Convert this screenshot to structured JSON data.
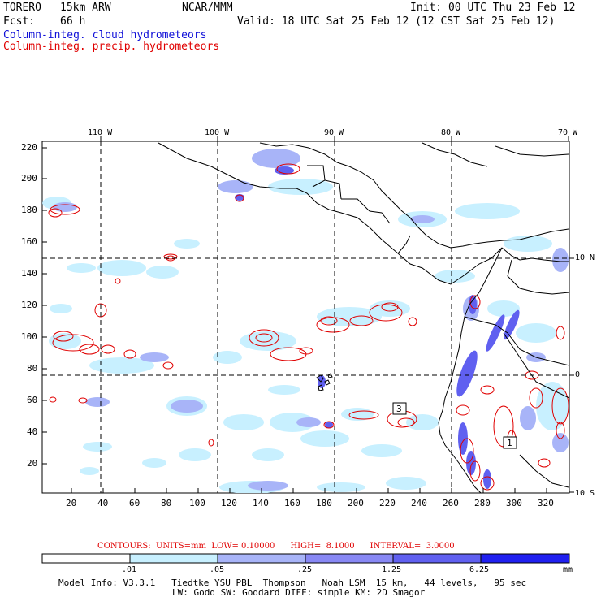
{
  "header": {
    "model": "TORERO",
    "resolution": "15km ARW",
    "org": "NCAR/MMM",
    "init": "Init: 00 UTC Thu 23 Feb 12",
    "fcst_label": "Fcst:",
    "fcst_value": "66 h",
    "valid": "Valid: 18 UTC Sat 25 Feb 12 (12 CST Sat 25 Feb 12)",
    "field1": "Column-integ. cloud hydrometeors",
    "field2": "Column-integ. precip. hydrometeors"
  },
  "map": {
    "top_lon_labels": [
      "110 W",
      "100 W",
      "90 W",
      "80 W",
      "70 W"
    ],
    "right_lat_labels": [
      "10 N",
      "0",
      "10 S"
    ],
    "left_ticks": [
      "220",
      "200",
      "180",
      "160",
      "140",
      "120",
      "100",
      "80",
      "60",
      "40",
      "20"
    ],
    "bottom_ticks": [
      "20",
      "40",
      "60",
      "80",
      "100",
      "120",
      "140",
      "160",
      "180",
      "200",
      "220",
      "240",
      "260",
      "280",
      "300",
      "320"
    ],
    "contour_labels": [
      "3",
      "1"
    ],
    "colors": {
      "cloud_light": "#c8f0ff",
      "cloud_mid": "#a8b4f8",
      "cloud_dark": "#6060f0",
      "precip": "#e00000",
      "land": "#000000"
    }
  },
  "contour_info": {
    "text": "CONTOURS:  UNITS=mm  LOW= 0.10000      HIGH=  8.1000      INTERVAL=  3.0000"
  },
  "colorbar": {
    "labels": [
      ".01",
      ".05",
      ".25",
      "1.25",
      "6.25"
    ],
    "unit": "mm",
    "colors": [
      "#ffffff",
      "#c8f0ff",
      "#a8b4f8",
      "#8888f4",
      "#6060f0",
      "#3030e8",
      "#2020f0"
    ]
  },
  "footer": {
    "line1": "Model Info: V3.3.1   Tiedtke YSU PBL  Thompson   Noah LSM  15 km,   44 levels,   95 sec",
    "line2": "LW: Godd SW: Goddard DIFF: simple KM: 2D Smagor"
  }
}
